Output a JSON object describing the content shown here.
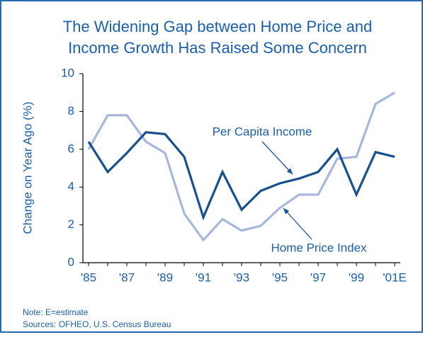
{
  "chart_data": {
    "type": "line",
    "title": [
      "The Widening Gap between Home Price and",
      "Income Growth Has Raised Some Concern"
    ],
    "ylabel": "Change on Year Ago (%)",
    "categories": [
      "'85",
      null,
      "'87",
      null,
      "'89",
      null,
      "'91",
      null,
      "'93",
      null,
      "'95",
      null,
      "'97",
      null,
      "'99",
      null,
      "'01E"
    ],
    "series": [
      {
        "name": "Per Capita Income",
        "color": "#17508e",
        "values": [
          6.4,
          4.8,
          5.8,
          6.9,
          6.8,
          5.6,
          2.4,
          4.8,
          2.8,
          3.8,
          4.2,
          4.45,
          4.8,
          6.0,
          3.6,
          5.85,
          5.6
        ]
      },
      {
        "name": "Home Price Index",
        "color": "#a7b7dc",
        "values": [
          6.0,
          7.8,
          7.8,
          6.4,
          5.8,
          2.6,
          1.2,
          2.3,
          1.7,
          1.95,
          2.9,
          3.6,
          3.6,
          5.5,
          5.6,
          8.4,
          9.0
        ]
      }
    ],
    "ylim": [
      0,
      10
    ],
    "yticks": [
      0,
      2,
      4,
      6,
      8,
      10
    ],
    "grid": false,
    "notes": [
      "Note: E=estimate",
      "Sources: OFHEO, U.S. Census Bureau"
    ]
  }
}
